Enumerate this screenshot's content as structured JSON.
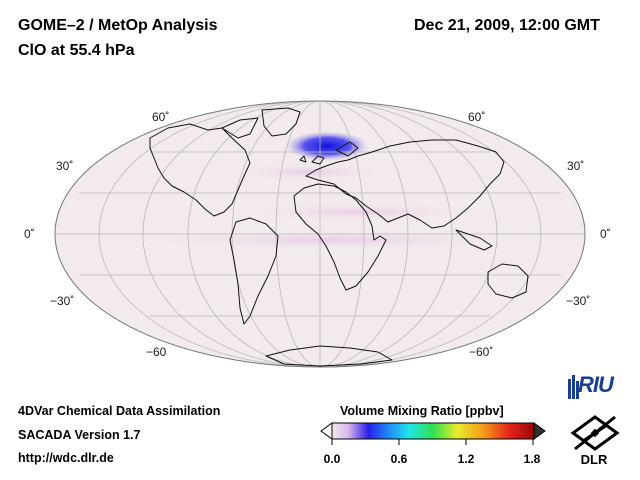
{
  "header": {
    "title": "GOME–2 / MetOp Analysis",
    "species": "ClO at 55.4 hPa",
    "datetime": "Dec 21, 2009, 12:00 GMT"
  },
  "map": {
    "projection": "Mollweide",
    "lat_labels": [
      "60˚",
      "30˚",
      "0˚",
      "−30˚",
      "−60"
    ],
    "lat_labels_right": [
      "60˚",
      "30˚",
      "0˚",
      "−30˚",
      "−60˚"
    ],
    "colors": {
      "ocean_bg": "#f2eaec",
      "grid": "#b9b9b9",
      "coast": "#111111",
      "anomaly_high": "#1d1be8"
    }
  },
  "footer": {
    "line1": "4DVar Chemical Data Assimilation",
    "line2": "SACADA Version 1.7",
    "line3": "http://wdc.dlr.de"
  },
  "colorbar": {
    "title": "Volume Mixing Ratio [ppbv]",
    "ticks": [
      "0.0",
      "0.6",
      "1.2",
      "1.8"
    ],
    "min": 0.0,
    "max": 1.8
  },
  "logos": {
    "riu": "RIU",
    "dlr": "DLR"
  }
}
